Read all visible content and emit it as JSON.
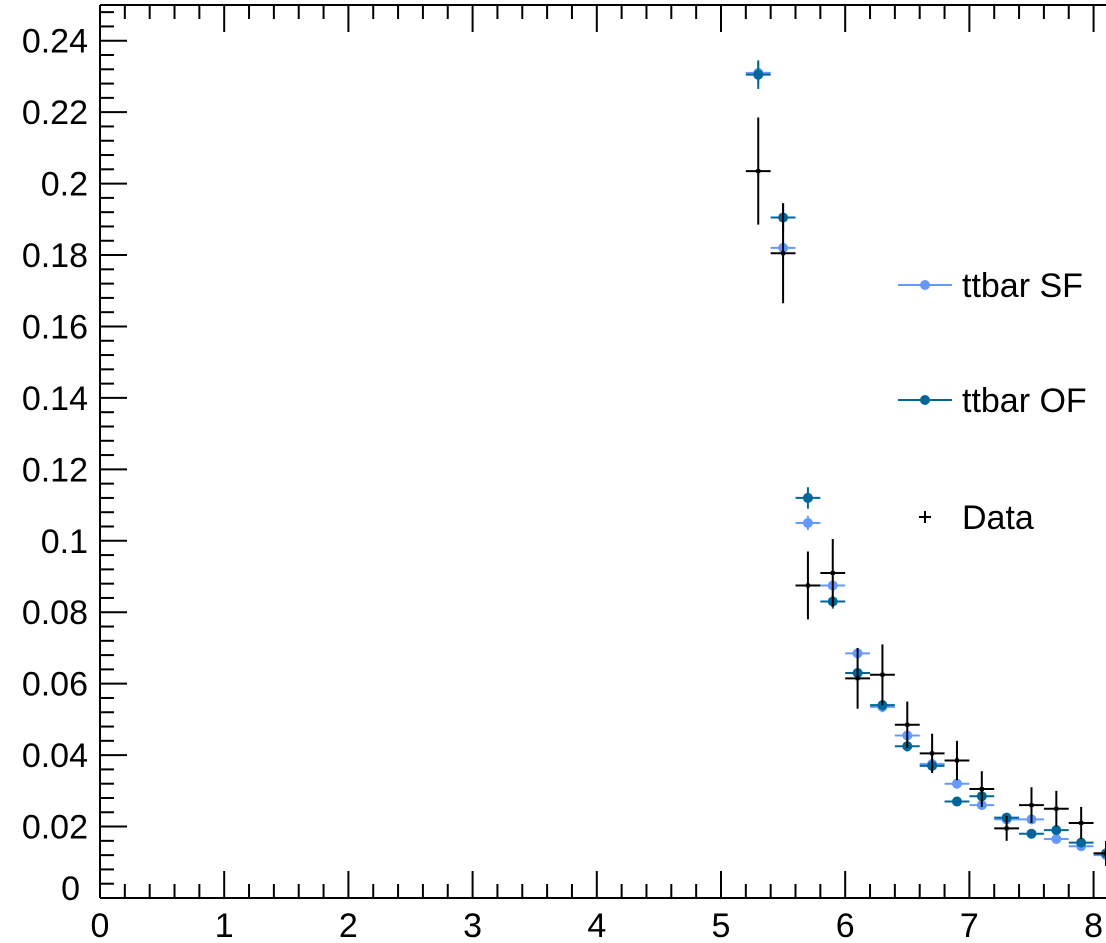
{
  "chart_data": {
    "type": "scatter",
    "title": "",
    "xlabel": "",
    "ylabel": "",
    "xlim": [
      0,
      8.1
    ],
    "ylim": [
      0,
      0.25
    ],
    "grid": false,
    "legend_position": "right",
    "x_ticks": [
      "0",
      "1",
      "2",
      "3",
      "4",
      "5",
      "6",
      "7",
      "8"
    ],
    "y_ticks": [
      "0",
      "0.02",
      "0.04",
      "0.06",
      "0.08",
      "0.1",
      "0.12",
      "0.14",
      "0.16",
      "0.18",
      "0.2",
      "0.22",
      "0.24"
    ],
    "series": [
      {
        "name": "ttbar SF",
        "color": "#6699ff",
        "marker": "circle",
        "x": [
          5.3,
          5.5,
          5.7,
          5.9,
          6.1,
          6.3,
          6.5,
          6.7,
          6.9,
          7.1,
          7.3,
          7.5,
          7.7,
          7.9,
          8.1
        ],
        "y": [
          0.231,
          0.182,
          0.105,
          0.0875,
          0.0685,
          0.0535,
          0.0455,
          0.0375,
          0.032,
          0.026,
          0.022,
          0.022,
          0.0165,
          0.0145,
          0.012
        ],
        "yerr": [
          0.003,
          0.003,
          0.002,
          0.002,
          0.0015,
          0.0015,
          0.0012,
          0.0012,
          0.001,
          0.001,
          0.001,
          0.001,
          0.001,
          0.001,
          0.001
        ]
      },
      {
        "name": "ttbar OF",
        "color": "#006699",
        "marker": "circle",
        "x": [
          5.3,
          5.5,
          5.7,
          5.9,
          6.1,
          6.3,
          6.5,
          6.7,
          6.9,
          7.1,
          7.3,
          7.5,
          7.7,
          7.9,
          8.1
        ],
        "y": [
          0.2305,
          0.1905,
          0.112,
          0.083,
          0.063,
          0.054,
          0.0425,
          0.037,
          0.027,
          0.0285,
          0.0225,
          0.018,
          0.019,
          0.0155,
          0.0125
        ],
        "yerr": [
          0.004,
          0.004,
          0.003,
          0.002,
          0.002,
          0.0015,
          0.0015,
          0.0015,
          0.001,
          0.0015,
          0.001,
          0.001,
          0.001,
          0.001,
          0.001
        ]
      },
      {
        "name": "Data",
        "color": "#000000",
        "marker": "cross",
        "x": [
          5.3,
          5.5,
          5.7,
          5.9,
          6.1,
          6.3,
          6.5,
          6.7,
          6.9,
          7.1,
          7.3,
          7.5,
          7.7,
          7.9,
          8.1
        ],
        "y": [
          0.2035,
          0.1805,
          0.0875,
          0.091,
          0.0615,
          0.0625,
          0.0485,
          0.0405,
          0.0385,
          0.0305,
          0.0195,
          0.026,
          0.025,
          0.021,
          0.0125
        ],
        "yerr": [
          0.015,
          0.014,
          0.0095,
          0.0095,
          0.0085,
          0.0085,
          0.0065,
          0.0055,
          0.0055,
          0.005,
          0.0035,
          0.005,
          0.005,
          0.0045,
          0.0035
        ]
      }
    ]
  }
}
